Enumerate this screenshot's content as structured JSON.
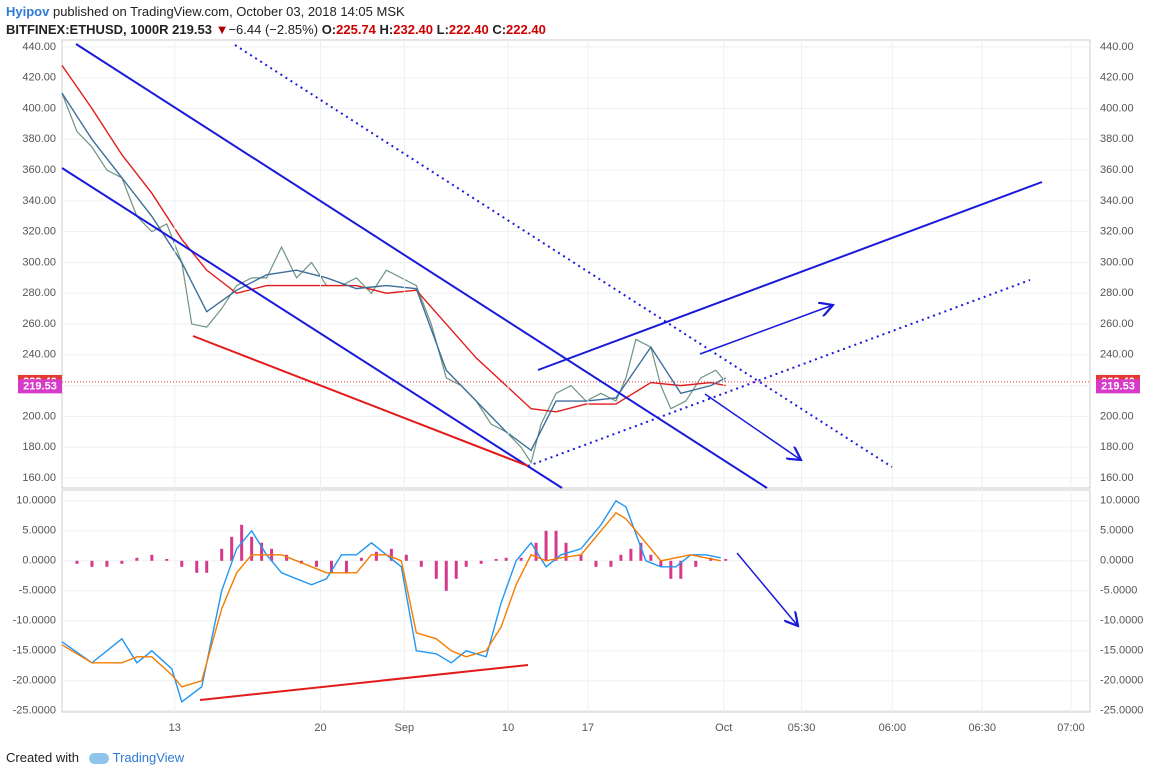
{
  "header": {
    "author": "Hyipov",
    "published": "published on TradingView.com, October 03, 2018 14:05 MSK",
    "symbol": "BITFINEX:ETHUSD, 1000R",
    "price": "219.53",
    "arrow": "▼",
    "change": "−6.44 (−2.85%)",
    "o_label": "O:",
    "open": "225.74",
    "h_label": "H:",
    "high": "232.40",
    "l_label": "L:",
    "low": "222.40",
    "c_label": "C:",
    "close": "222.40"
  },
  "footer": {
    "created": "Created with",
    "brand": "TradingView"
  },
  "chart_data": [
    {
      "type": "line",
      "xlim": [
        0,
        206
      ],
      "ylim": [
        153.5,
        444.5
      ],
      "yticks": [
        {
          "value": 160,
          "label": "160.00"
        },
        {
          "value": 180,
          "label": "180.00"
        },
        {
          "value": 200,
          "label": "200.00"
        },
        {
          "value": 220,
          "label": "220.00"
        },
        {
          "value": 240,
          "label": "240.00"
        },
        {
          "value": 260,
          "label": "260.00"
        },
        {
          "value": 280,
          "label": "280.00"
        },
        {
          "value": 300,
          "label": "300.00"
        },
        {
          "value": 320,
          "label": "320.00"
        },
        {
          "value": 340,
          "label": "340.00"
        },
        {
          "value": 360,
          "label": "360.00"
        },
        {
          "value": 380,
          "label": "380.00"
        },
        {
          "value": 400,
          "label": "400.00"
        },
        {
          "value": 420,
          "label": "420.00"
        },
        {
          "value": 440,
          "label": "440.00"
        }
      ],
      "last_close": {
        "value": 222.4,
        "label": "222.40",
        "color": "#e53935"
      },
      "last_price": {
        "value": 219.53,
        "label": "219.53",
        "color": "#d63ac8"
      },
      "series": [
        {
          "color": "#6f9480",
          "x": [
            0,
            3,
            6,
            9,
            12,
            15,
            18,
            21,
            24,
            26,
            29,
            32,
            35,
            38,
            41,
            44,
            47,
            50,
            53,
            56,
            59,
            62,
            65,
            68,
            71,
            74,
            77,
            80,
            83,
            86,
            89,
            92,
            94,
            96,
            99,
            102,
            105,
            108,
            111,
            113,
            115,
            118,
            120,
            122,
            125,
            128,
            131,
            133
          ],
          "values": [
            410,
            385,
            375,
            360,
            355,
            330,
            320,
            325,
            300,
            260,
            258,
            270,
            285,
            290,
            290,
            310,
            290,
            300,
            285,
            285,
            290,
            280,
            295,
            290,
            285,
            260,
            225,
            220,
            210,
            195,
            190,
            180,
            170,
            195,
            215,
            220,
            210,
            215,
            210,
            225,
            250,
            245,
            220,
            205,
            210,
            225,
            230,
            222.4
          ]
        },
        {
          "color": "#e31b1b",
          "x": [
            0,
            6,
            12,
            18,
            24,
            29,
            35,
            41,
            47,
            53,
            59,
            65,
            71,
            77,
            83,
            89,
            94,
            99,
            105,
            111,
            118,
            124,
            130,
            133
          ],
          "values": [
            428,
            400,
            370,
            345,
            315,
            295,
            280,
            285,
            285,
            285,
            285,
            280,
            282,
            260,
            238,
            220,
            205,
            203,
            208,
            208,
            222,
            220,
            222,
            220
          ]
        },
        {
          "color": "#3e6f99",
          "x": [
            0,
            6,
            12,
            18,
            24,
            29,
            35,
            41,
            47,
            53,
            59,
            65,
            71,
            77,
            83,
            89,
            94,
            99,
            105,
            111,
            118,
            124,
            130,
            133
          ],
          "values": [
            410,
            380,
            355,
            330,
            300,
            268,
            282,
            292,
            295,
            290,
            283,
            285,
            283,
            230,
            210,
            190,
            178,
            210,
            210,
            212,
            245,
            215,
            220,
            225
          ]
        }
      ]
    },
    {
      "type": "line",
      "xlim": [
        0,
        206
      ],
      "ylim": [
        -25.2,
        11.8
      ],
      "yticks": [
        {
          "value": -25,
          "label": "-25.0000"
        },
        {
          "value": -20,
          "label": "-20.0000"
        },
        {
          "value": -15,
          "label": "-15.0000"
        },
        {
          "value": -10,
          "label": "-10.0000"
        },
        {
          "value": -5,
          "label": "-5.0000"
        },
        {
          "value": 0,
          "label": "0.0000"
        },
        {
          "value": 5,
          "label": "5.0000"
        },
        {
          "value": 10,
          "label": "10.0000"
        }
      ],
      "xticks": [
        {
          "value": 22.6,
          "label": "13"
        },
        {
          "value": 51.8,
          "label": "20"
        },
        {
          "value": 68.6,
          "label": "Sep"
        },
        {
          "value": 89.4,
          "label": "10"
        },
        {
          "value": 105.4,
          "label": "17"
        },
        {
          "value": 132.6,
          "label": "Oct"
        },
        {
          "value": 148.2,
          "label": "05:30"
        },
        {
          "value": 166.4,
          "label": "06:00"
        },
        {
          "value": 184.4,
          "label": "06:30"
        },
        {
          "value": 202.2,
          "label": "07:00"
        }
      ],
      "series": [
        {
          "style": "histogram",
          "color": "#d6398a",
          "x": [
            3,
            6,
            9,
            12,
            15,
            18,
            21,
            24,
            27,
            29,
            32,
            34,
            36,
            38,
            40,
            42,
            45,
            48,
            51,
            54,
            57,
            60,
            63,
            66,
            69,
            72,
            75,
            77,
            79,
            81,
            84,
            87,
            89,
            92,
            95,
            97,
            99,
            101,
            104,
            107,
            110,
            112,
            114,
            116,
            118,
            120,
            122,
            124,
            127,
            130,
            133
          ],
          "values": [
            -0.5,
            -1,
            -1,
            -0.5,
            0.5,
            1,
            0.3,
            -1,
            -2,
            -2,
            2,
            4,
            6,
            4,
            3,
            2,
            1,
            -0.5,
            -1,
            -2,
            -2,
            0.5,
            1.5,
            2,
            1,
            -1,
            -3,
            -5,
            -3,
            -1,
            -0.5,
            0.3,
            0.5,
            0.5,
            3,
            5,
            5,
            3,
            1,
            -1,
            -1,
            1,
            2,
            3,
            1,
            -1,
            -3,
            -3,
            -1,
            0.5,
            0.3
          ]
        },
        {
          "color": "#2196f3",
          "x": [
            0,
            6,
            12,
            15,
            18,
            22,
            24,
            28,
            32,
            35,
            38,
            41,
            44,
            47,
            50,
            53,
            56,
            59,
            62,
            65,
            68,
            71,
            75,
            78,
            81,
            85,
            88,
            91,
            94,
            97,
            100,
            104,
            108,
            111,
            113,
            117,
            120,
            123,
            126,
            129,
            132
          ],
          "values": [
            -13.5,
            -17,
            -13,
            -17,
            -15,
            -18,
            -23.5,
            -21,
            -5,
            2,
            5,
            1,
            -2,
            -3,
            -4,
            -3,
            1,
            1,
            3,
            1,
            -1,
            -15,
            -15.5,
            -17,
            -15,
            -16,
            -7,
            0,
            3,
            -1,
            1,
            2,
            6,
            10,
            9,
            0,
            -1,
            -1,
            1,
            1,
            0.5
          ]
        },
        {
          "color": "#f57c00",
          "x": [
            0,
            6,
            12,
            15,
            18,
            22,
            24,
            28,
            32,
            35,
            38,
            41,
            44,
            47,
            50,
            53,
            56,
            59,
            62,
            65,
            68,
            71,
            75,
            78,
            81,
            85,
            88,
            91,
            94,
            97,
            100,
            104,
            108,
            111,
            113,
            117,
            120,
            123,
            126,
            129,
            132
          ],
          "values": [
            -14,
            -17,
            -17,
            -16,
            -16,
            -19,
            -21,
            -20,
            -8,
            -2,
            1,
            1,
            1,
            0,
            -1,
            -2,
            -2,
            -2,
            1,
            1,
            0,
            -12,
            -13,
            -15,
            -16,
            -15,
            -11,
            -4,
            1,
            0,
            0.5,
            1,
            5,
            8,
            7,
            3,
            0,
            0.5,
            1,
            0.5,
            0
          ]
        }
      ]
    }
  ]
}
